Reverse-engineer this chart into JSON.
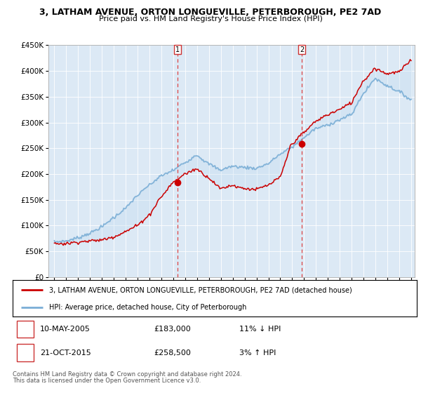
{
  "title": "3, LATHAM AVENUE, ORTON LONGUEVILLE, PETERBOROUGH, PE2 7AD",
  "subtitle": "Price paid vs. HM Land Registry's House Price Index (HPI)",
  "legend_line1": "3, LATHAM AVENUE, ORTON LONGUEVILLE, PETERBOROUGH, PE2 7AD (detached house)",
  "legend_line2": "HPI: Average price, detached house, City of Peterborough",
  "footnote1": "Contains HM Land Registry data © Crown copyright and database right 2024.",
  "footnote2": "This data is licensed under the Open Government Licence v3.0.",
  "table": [
    {
      "num": "1",
      "date": "10-MAY-2005",
      "price": "£183,000",
      "change": "11% ↓ HPI"
    },
    {
      "num": "2",
      "date": "21-OCT-2015",
      "price": "£258,500",
      "change": "3% ↑ HPI"
    }
  ],
  "marker1_x": 2005.36,
  "marker1_y": 183000,
  "marker2_x": 2015.8,
  "marker2_y": 258500,
  "bg_color": "#dce9f5",
  "red_color": "#cc0000",
  "blue_color": "#7aaed6",
  "fill_color": "#c5ddf0",
  "ylim": [
    0,
    450000
  ],
  "xlim_start": 1994.5,
  "xlim_end": 2025.3,
  "hpi_years": [
    1995,
    1996,
    1997,
    1998,
    1999,
    2000,
    2001,
    2002,
    2003,
    2004,
    2005,
    2006,
    2007,
    2008,
    2009,
    2010,
    2011,
    2012,
    2013,
    2014,
    2015,
    2016,
    2017,
    2018,
    2019,
    2020,
    2021,
    2022,
    2023,
    2024,
    2025
  ],
  "hpi_values": [
    68000,
    70000,
    76000,
    85000,
    97000,
    115000,
    133000,
    158000,
    178000,
    196000,
    207000,
    222000,
    237000,
    220000,
    208000,
    215000,
    213000,
    211000,
    220000,
    238000,
    252000,
    270000,
    288000,
    295000,
    305000,
    315000,
    355000,
    385000,
    372000,
    360000,
    345000
  ],
  "red_years": [
    1995,
    1996,
    1997,
    1998,
    1999,
    2000,
    2001,
    2002,
    2003,
    2004,
    2005,
    2006,
    2007,
    2008,
    2009,
    2010,
    2011,
    2012,
    2013,
    2014,
    2015,
    2016,
    2017,
    2018,
    2019,
    2020,
    2021,
    2022,
    2023,
    2024,
    2025
  ],
  "red_values": [
    65000,
    65000,
    68000,
    70000,
    72000,
    78000,
    88000,
    100000,
    120000,
    155000,
    183000,
    200000,
    210000,
    193000,
    172000,
    178000,
    172000,
    170000,
    178000,
    193000,
    258500,
    280000,
    302000,
    315000,
    325000,
    338000,
    380000,
    405000,
    395000,
    398000,
    420000
  ]
}
